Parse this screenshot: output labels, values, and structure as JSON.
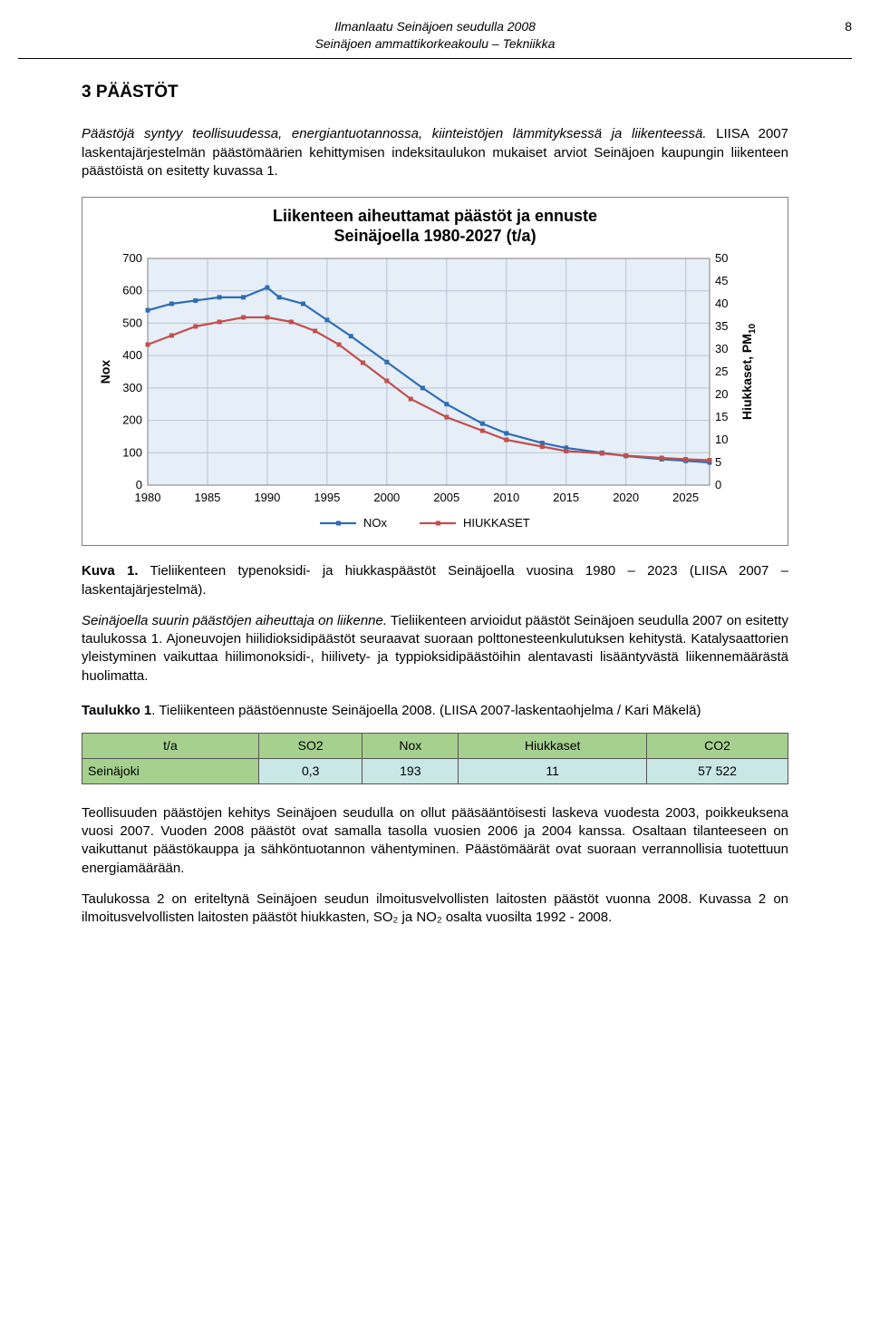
{
  "header": {
    "line1": "Ilmanlaatu Seinäjoen seudulla 2008",
    "line2": "Seinäjoen ammattikorkeakoulu – Tekniikka",
    "page_number": "8"
  },
  "section_heading": "3  PÄÄSTÖT",
  "para1_lead": "Päästöjä syntyy teollisuudessa, energiantuotannossa, kiinteistöjen lämmityksessä ja liikenteessä.",
  "para1_rest": " LIISA 2007 laskentajärjestelmän päästömäärien kehittymisen indeksitaulukon mukaiset arviot Seinäjoen kaupungin liikenteen päästöistä on esitetty kuvassa 1.",
  "chart": {
    "title_line1": "Liikenteen aiheuttamat päästöt ja ennuste",
    "title_line2": "Seinäjoella 1980-2027 (t/a)",
    "y1_label": "Nox",
    "y2_label_line1": "Hiukkaset, PM",
    "y2_sub": "10",
    "y1_ticks": [
      0,
      100,
      200,
      300,
      400,
      500,
      600,
      700
    ],
    "y2_ticks": [
      0,
      5,
      10,
      15,
      20,
      25,
      30,
      35,
      40,
      45,
      50
    ],
    "x_ticks": [
      1980,
      1985,
      1990,
      1995,
      2000,
      2005,
      2010,
      2015,
      2020,
      2025
    ],
    "x_min": 1980,
    "x_max": 2027,
    "y1_max": 700,
    "y2_max": 50,
    "plot_bg": "#e6eef7",
    "grid_color": "#b8c4d4",
    "border_color": "#7f7f7f",
    "series": {
      "nox": {
        "color": "#2e6db5",
        "label": "NOx",
        "points": [
          [
            1980,
            540
          ],
          [
            1982,
            560
          ],
          [
            1984,
            570
          ],
          [
            1986,
            580
          ],
          [
            1988,
            580
          ],
          [
            1990,
            610
          ],
          [
            1991,
            580
          ],
          [
            1993,
            560
          ],
          [
            1995,
            510
          ],
          [
            1997,
            460
          ],
          [
            2000,
            380
          ],
          [
            2003,
            300
          ],
          [
            2005,
            250
          ],
          [
            2008,
            190
          ],
          [
            2010,
            160
          ],
          [
            2013,
            130
          ],
          [
            2015,
            115
          ],
          [
            2018,
            100
          ],
          [
            2020,
            90
          ],
          [
            2023,
            80
          ],
          [
            2025,
            75
          ],
          [
            2027,
            70
          ]
        ]
      },
      "hiukkaset": {
        "color": "#c0504d",
        "label": "HIUKKASET",
        "points": [
          [
            1980,
            31
          ],
          [
            1982,
            33
          ],
          [
            1984,
            35
          ],
          [
            1986,
            36
          ],
          [
            1988,
            37
          ],
          [
            1990,
            37
          ],
          [
            1992,
            36
          ],
          [
            1994,
            34
          ],
          [
            1996,
            31
          ],
          [
            1998,
            27
          ],
          [
            2000,
            23
          ],
          [
            2002,
            19
          ],
          [
            2005,
            15
          ],
          [
            2008,
            12
          ],
          [
            2010,
            10
          ],
          [
            2013,
            8.5
          ],
          [
            2015,
            7.5
          ],
          [
            2018,
            7
          ],
          [
            2020,
            6.5
          ],
          [
            2023,
            6
          ],
          [
            2025,
            5.7
          ],
          [
            2027,
            5.5
          ]
        ]
      }
    }
  },
  "fig_caption_bold": "Kuva 1.",
  "fig_caption_rest": " Tieliikenteen typenoksidi- ja hiukkaspäästöt Seinäjoella vuosina 1980 – 2023 (LIISA 2007 –laskentajärjestelmä).",
  "para2_lead": "Seinäjoella suurin päästöjen aiheuttaja on liikenne.",
  "para2_rest": " Tieliikenteen arvioidut päästöt Seinäjoen seudulla 2007 on esitetty taulukossa 1. Ajoneuvojen hiilidioksidipäästöt seuraavat suoraan polttonesteenkulutuksen kehitystä. Katalysaattorien yleistyminen vaikuttaa hiilimonoksidi-, hiilivety- ja typpioksidipäästöihin alentavasti lisääntyvästä liikennemäärästä huolimatta.",
  "tbl_caption_bold": "Taulukko 1",
  "tbl_caption_rest": ". Tieliikenteen päästöennuste Seinäjoella 2008. (LIISA 2007-laskentaohjelma / Kari Mäkelä)",
  "table": {
    "columns": [
      "t/a",
      "SO2",
      "Nox",
      "Hiukkaset",
      "CO2"
    ],
    "row_label": "Seinäjoki",
    "values": [
      "0,3",
      "193",
      "11",
      "57 522"
    ]
  },
  "para3": "Teollisuuden päästöjen kehitys Seinäjoen seudulla on ollut pääsääntöisesti laskeva vuodesta 2003, poikkeuksena vuosi 2007. Vuoden 2008 päästöt ovat samalla tasolla vuosien 2006 ja 2004 kanssa. Osaltaan tilanteeseen on vaikuttanut päästökauppa ja sähköntuotannon vähentyminen. Päästömäärät ovat suoraan verrannollisia tuotettuun energiamäärään.",
  "para4": "Taulukossa 2 on eriteltynä Seinäjoen seudun ilmoitusvelvollisten laitosten päästöt vuonna 2008. Kuvassa 2 on ilmoitusvelvollisten laitosten päästöt hiukkasten, SO₂ ja NO₂ osalta vuosilta 1992 - 2008."
}
